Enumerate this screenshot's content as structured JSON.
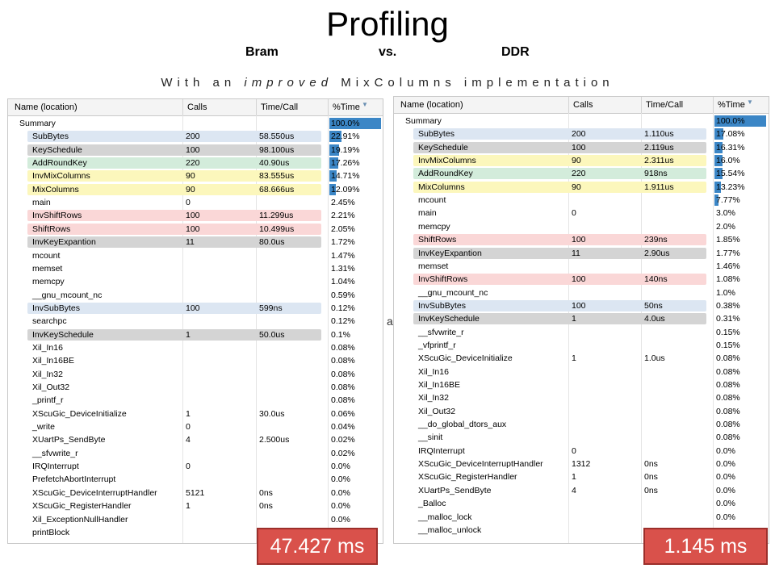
{
  "title": "Profiling",
  "subtitle": {
    "left": "Bram",
    "middle": "vs.",
    "right": "DDR"
  },
  "tagline": {
    "pre": "With an",
    "italic": "improved",
    "post": "MixColumns implementation"
  },
  "stray_letter": "a",
  "columns": {
    "name": "Name (location)",
    "calls": "Calls",
    "time": "Time/Call",
    "pct": "%Time"
  },
  "highlight_colors": {
    "blue": "#dce6f2",
    "gray": "#d4d4d4",
    "green": "#d3ecdb",
    "yellow": "#fcf7bc",
    "red": "#fad7d7"
  },
  "bar_color": "#3b86c6",
  "badge_color": "#d9514b",
  "bram": {
    "total": "47.427 ms",
    "rows": [
      {
        "name": "Summary",
        "calls": "",
        "time": "",
        "pct": "100.0%",
        "indent": 0,
        "hl": "",
        "bar": 1.0
      },
      {
        "name": "SubBytes",
        "calls": "200",
        "time": "58.550us",
        "pct": "22.91%",
        "indent": 1,
        "hl": "blue",
        "bar": 0.2291
      },
      {
        "name": "KeySchedule",
        "calls": "100",
        "time": "98.100us",
        "pct": "19.19%",
        "indent": 1,
        "hl": "gray",
        "bar": 0.1919
      },
      {
        "name": "AddRoundKey",
        "calls": "220",
        "time": "40.90us",
        "pct": "17.26%",
        "indent": 1,
        "hl": "green",
        "bar": 0.1726
      },
      {
        "name": "InvMixColumns",
        "calls": "90",
        "time": "83.555us",
        "pct": "14.71%",
        "indent": 1,
        "hl": "yellow",
        "bar": 0.1471
      },
      {
        "name": "MixColumns",
        "calls": "90",
        "time": "68.666us",
        "pct": "12.09%",
        "indent": 1,
        "hl": "yellow",
        "bar": 0.1209
      },
      {
        "name": "main",
        "calls": "0",
        "time": "",
        "pct": "2.45%",
        "indent": 1,
        "hl": "",
        "bar": 0
      },
      {
        "name": "InvShiftRows",
        "calls": "100",
        "time": "11.299us",
        "pct": "2.21%",
        "indent": 1,
        "hl": "red",
        "bar": 0
      },
      {
        "name": "ShiftRows",
        "calls": "100",
        "time": "10.499us",
        "pct": "2.05%",
        "indent": 1,
        "hl": "red",
        "bar": 0
      },
      {
        "name": "InvKeyExpantion",
        "calls": "11",
        "time": "80.0us",
        "pct": "1.72%",
        "indent": 1,
        "hl": "gray",
        "bar": 0
      },
      {
        "name": "mcount",
        "calls": "",
        "time": "",
        "pct": "1.47%",
        "indent": 1,
        "hl": "",
        "bar": 0
      },
      {
        "name": "memset",
        "calls": "",
        "time": "",
        "pct": "1.31%",
        "indent": 1,
        "hl": "",
        "bar": 0
      },
      {
        "name": "memcpy",
        "calls": "",
        "time": "",
        "pct": "1.04%",
        "indent": 1,
        "hl": "",
        "bar": 0
      },
      {
        "name": "__gnu_mcount_nc",
        "calls": "",
        "time": "",
        "pct": "0.59%",
        "indent": 1,
        "hl": "",
        "bar": 0
      },
      {
        "name": "InvSubBytes",
        "calls": "100",
        "time": "599ns",
        "pct": "0.12%",
        "indent": 1,
        "hl": "blue",
        "bar": 0
      },
      {
        "name": "searchpc",
        "calls": "",
        "time": "",
        "pct": "0.12%",
        "indent": 1,
        "hl": "",
        "bar": 0
      },
      {
        "name": "InvKeySchedule",
        "calls": "1",
        "time": "50.0us",
        "pct": "0.1%",
        "indent": 1,
        "hl": "gray",
        "bar": 0
      },
      {
        "name": "Xil_In16",
        "calls": "",
        "time": "",
        "pct": "0.08%",
        "indent": 1,
        "hl": "",
        "bar": 0
      },
      {
        "name": "Xil_In16BE",
        "calls": "",
        "time": "",
        "pct": "0.08%",
        "indent": 1,
        "hl": "",
        "bar": 0
      },
      {
        "name": "Xil_In32",
        "calls": "",
        "time": "",
        "pct": "0.08%",
        "indent": 1,
        "hl": "",
        "bar": 0
      },
      {
        "name": "Xil_Out32",
        "calls": "",
        "time": "",
        "pct": "0.08%",
        "indent": 1,
        "hl": "",
        "bar": 0
      },
      {
        "name": "_printf_r",
        "calls": "",
        "time": "",
        "pct": "0.08%",
        "indent": 1,
        "hl": "",
        "bar": 0
      },
      {
        "name": "XScuGic_DeviceInitialize",
        "calls": "1",
        "time": "30.0us",
        "pct": "0.06%",
        "indent": 1,
        "hl": "",
        "bar": 0
      },
      {
        "name": "_write",
        "calls": "0",
        "time": "",
        "pct": "0.04%",
        "indent": 1,
        "hl": "",
        "bar": 0
      },
      {
        "name": "XUartPs_SendByte",
        "calls": "4",
        "time": "2.500us",
        "pct": "0.02%",
        "indent": 1,
        "hl": "",
        "bar": 0
      },
      {
        "name": "__sfvwrite_r",
        "calls": "",
        "time": "",
        "pct": "0.02%",
        "indent": 1,
        "hl": "",
        "bar": 0
      },
      {
        "name": "IRQInterrupt",
        "calls": "0",
        "time": "",
        "pct": "0.0%",
        "indent": 1,
        "hl": "",
        "bar": 0
      },
      {
        "name": "PrefetchAbortInterrupt",
        "calls": "",
        "time": "",
        "pct": "0.0%",
        "indent": 1,
        "hl": "",
        "bar": 0
      },
      {
        "name": "XScuGic_DeviceInterruptHandler",
        "calls": "5121",
        "time": "0ns",
        "pct": "0.0%",
        "indent": 1,
        "hl": "",
        "bar": 0
      },
      {
        "name": "XScuGic_RegisterHandler",
        "calls": "1",
        "time": "0ns",
        "pct": "0.0%",
        "indent": 1,
        "hl": "",
        "bar": 0
      },
      {
        "name": "Xil_ExceptionNullHandler",
        "calls": "",
        "time": "",
        "pct": "0.0%",
        "indent": 1,
        "hl": "",
        "bar": 0
      },
      {
        "name": "printBlock",
        "calls": "",
        "time": "",
        "pct": "",
        "indent": 1,
        "hl": "",
        "bar": 0
      }
    ]
  },
  "ddr": {
    "total": "1.145 ms",
    "rows": [
      {
        "name": "Summary",
        "calls": "",
        "time": "",
        "pct": "100.0%",
        "indent": 0,
        "hl": "",
        "bar": 1.0
      },
      {
        "name": "SubBytes",
        "calls": "200",
        "time": "1.110us",
        "pct": "17.08%",
        "indent": 1,
        "hl": "blue",
        "bar": 0.1708
      },
      {
        "name": "KeySchedule",
        "calls": "100",
        "time": "2.119us",
        "pct": "16.31%",
        "indent": 1,
        "hl": "gray",
        "bar": 0.1631
      },
      {
        "name": "InvMixColumns",
        "calls": "90",
        "time": "2.311us",
        "pct": "16.0%",
        "indent": 1,
        "hl": "yellow",
        "bar": 0.16
      },
      {
        "name": "AddRoundKey",
        "calls": "220",
        "time": "918ns",
        "pct": "15.54%",
        "indent": 1,
        "hl": "green",
        "bar": 0.1554
      },
      {
        "name": "MixColumns",
        "calls": "90",
        "time": "1.911us",
        "pct": "13.23%",
        "indent": 1,
        "hl": "yellow",
        "bar": 0.1323
      },
      {
        "name": "mcount",
        "calls": "",
        "time": "",
        "pct": "7.77%",
        "indent": 1,
        "hl": "",
        "bar": 0.0777
      },
      {
        "name": "main",
        "calls": "0",
        "time": "",
        "pct": "3.0%",
        "indent": 1,
        "hl": "",
        "bar": 0
      },
      {
        "name": "memcpy",
        "calls": "",
        "time": "",
        "pct": "2.0%",
        "indent": 1,
        "hl": "",
        "bar": 0
      },
      {
        "name": "ShiftRows",
        "calls": "100",
        "time": "239ns",
        "pct": "1.85%",
        "indent": 1,
        "hl": "red",
        "bar": 0
      },
      {
        "name": "InvKeyExpantion",
        "calls": "11",
        "time": "2.90us",
        "pct": "1.77%",
        "indent": 1,
        "hl": "gray",
        "bar": 0
      },
      {
        "name": "memset",
        "calls": "",
        "time": "",
        "pct": "1.46%",
        "indent": 1,
        "hl": "",
        "bar": 0
      },
      {
        "name": "InvShiftRows",
        "calls": "100",
        "time": "140ns",
        "pct": "1.08%",
        "indent": 1,
        "hl": "red",
        "bar": 0
      },
      {
        "name": "__gnu_mcount_nc",
        "calls": "",
        "time": "",
        "pct": "1.0%",
        "indent": 1,
        "hl": "",
        "bar": 0
      },
      {
        "name": "InvSubBytes",
        "calls": "100",
        "time": "50ns",
        "pct": "0.38%",
        "indent": 1,
        "hl": "blue",
        "bar": 0
      },
      {
        "name": "InvKeySchedule",
        "calls": "1",
        "time": "4.0us",
        "pct": "0.31%",
        "indent": 1,
        "hl": "gray",
        "bar": 0
      },
      {
        "name": "__sfvwrite_r",
        "calls": "",
        "time": "",
        "pct": "0.15%",
        "indent": 1,
        "hl": "",
        "bar": 0
      },
      {
        "name": "_vfprintf_r",
        "calls": "",
        "time": "",
        "pct": "0.15%",
        "indent": 1,
        "hl": "",
        "bar": 0
      },
      {
        "name": "XScuGic_DeviceInitialize",
        "calls": "1",
        "time": "1.0us",
        "pct": "0.08%",
        "indent": 1,
        "hl": "",
        "bar": 0
      },
      {
        "name": "Xil_In16",
        "calls": "",
        "time": "",
        "pct": "0.08%",
        "indent": 1,
        "hl": "",
        "bar": 0
      },
      {
        "name": "Xil_In16BE",
        "calls": "",
        "time": "",
        "pct": "0.08%",
        "indent": 1,
        "hl": "",
        "bar": 0
      },
      {
        "name": "Xil_In32",
        "calls": "",
        "time": "",
        "pct": "0.08%",
        "indent": 1,
        "hl": "",
        "bar": 0
      },
      {
        "name": "Xil_Out32",
        "calls": "",
        "time": "",
        "pct": "0.08%",
        "indent": 1,
        "hl": "",
        "bar": 0
      },
      {
        "name": "__do_global_dtors_aux",
        "calls": "",
        "time": "",
        "pct": "0.08%",
        "indent": 1,
        "hl": "",
        "bar": 0
      },
      {
        "name": "__sinit",
        "calls": "",
        "time": "",
        "pct": "0.08%",
        "indent": 1,
        "hl": "",
        "bar": 0
      },
      {
        "name": "IRQInterrupt",
        "calls": "0",
        "time": "",
        "pct": "0.0%",
        "indent": 1,
        "hl": "",
        "bar": 0
      },
      {
        "name": "XScuGic_DeviceInterruptHandler",
        "calls": "1312",
        "time": "0ns",
        "pct": "0.0%",
        "indent": 1,
        "hl": "",
        "bar": 0
      },
      {
        "name": "XScuGic_RegisterHandler",
        "calls": "1",
        "time": "0ns",
        "pct": "0.0%",
        "indent": 1,
        "hl": "",
        "bar": 0
      },
      {
        "name": "XUartPs_SendByte",
        "calls": "4",
        "time": "0ns",
        "pct": "0.0%",
        "indent": 1,
        "hl": "",
        "bar": 0
      },
      {
        "name": "_Balloc",
        "calls": "",
        "time": "",
        "pct": "0.0%",
        "indent": 1,
        "hl": "",
        "bar": 0
      },
      {
        "name": "__malloc_lock",
        "calls": "",
        "time": "",
        "pct": "0.0%",
        "indent": 1,
        "hl": "",
        "bar": 0
      },
      {
        "name": "__malloc_unlock",
        "calls": "",
        "time": "",
        "pct": "",
        "indent": 1,
        "hl": "",
        "bar": 0
      }
    ]
  }
}
